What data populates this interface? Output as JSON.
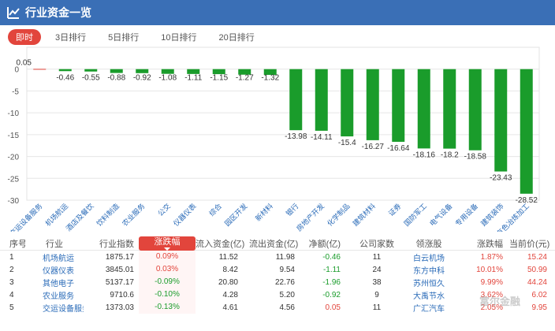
{
  "header": {
    "title": "行业资金一览",
    "icon": "chart-icon"
  },
  "tabs": [
    "即时",
    "3日排行",
    "5日排行",
    "10日排行",
    "20日排行"
  ],
  "active_tab": 0,
  "chart_data": {
    "type": "bar",
    "categories": [
      "交运设备服务",
      "机场航运",
      "酒店及餐饮",
      "饮料制造",
      "农业服务",
      "公交",
      "仪器仪表",
      "综合",
      "园区开发",
      "新材料",
      "银行",
      "房地产开发",
      "化学制品",
      "建筑材料",
      "证券",
      "国防军工",
      "电气设备",
      "专用设备",
      "建筑装饰",
      "有色冶炼加工"
    ],
    "values": [
      0.05,
      -0.46,
      -0.55,
      -0.88,
      -0.92,
      -1.08,
      -1.11,
      -1.15,
      -1.27,
      -1.32,
      -13.98,
      -14.11,
      -15.4,
      -16.27,
      -16.64,
      -18.16,
      -18.2,
      -18.58,
      -23.43,
      -28.52
    ],
    "value_labels": [
      "0.05",
      "-0.46",
      "-0.55",
      "-0.88",
      "-0.92",
      "-1.08",
      "-1.11",
      "-1.15",
      "-1.27",
      "-1.32",
      "-13.98",
      "-14.11",
      "-15.4",
      "-16.27",
      "-16.64",
      "-18.16",
      "-18.2",
      "-18.58",
      "-23.43",
      "-28.52"
    ],
    "yticks": [
      0,
      -5,
      -10,
      -15,
      -20,
      -25,
      -30
    ],
    "ylim": [
      -30,
      5
    ],
    "grid": true,
    "colors": {
      "positive": "#e2453c",
      "negative": "#1a9c2b"
    }
  },
  "table": {
    "headers": [
      "序号",
      "行业",
      "行业指数",
      "涨跌幅",
      "流入资金(亿)",
      "流出资金(亿)",
      "净额(亿)",
      "公司家数",
      "领涨股",
      "涨跌幅",
      "当前价(元)"
    ],
    "rows": [
      [
        "1",
        "机场航运",
        "1875.17",
        "0.09%",
        "11.52",
        "11.98",
        "-0.46",
        "11",
        "白云机场",
        "1.87%",
        "15.24"
      ],
      [
        "2",
        "仪器仪表",
        "3845.01",
        "0.03%",
        "8.42",
        "9.54",
        "-1.11",
        "24",
        "东方中科",
        "10.01%",
        "50.99"
      ],
      [
        "3",
        "其他电子",
        "5137.17",
        "-0.09%",
        "20.80",
        "22.76",
        "-1.96",
        "38",
        "苏州恒久",
        "9.99%",
        "44.24"
      ],
      [
        "4",
        "农业服务",
        "9710.6",
        "-0.10%",
        "4.28",
        "5.20",
        "-0.92",
        "9",
        "大禹节水",
        "3.62%",
        "6.02"
      ],
      [
        "5",
        "交运设备服务",
        "1373.03",
        "-0.13%",
        "4.61",
        "4.56",
        "0.05",
        "11",
        "广汇汽车",
        "2.05%",
        "9.95"
      ]
    ]
  },
  "watermark": "富尔金融"
}
